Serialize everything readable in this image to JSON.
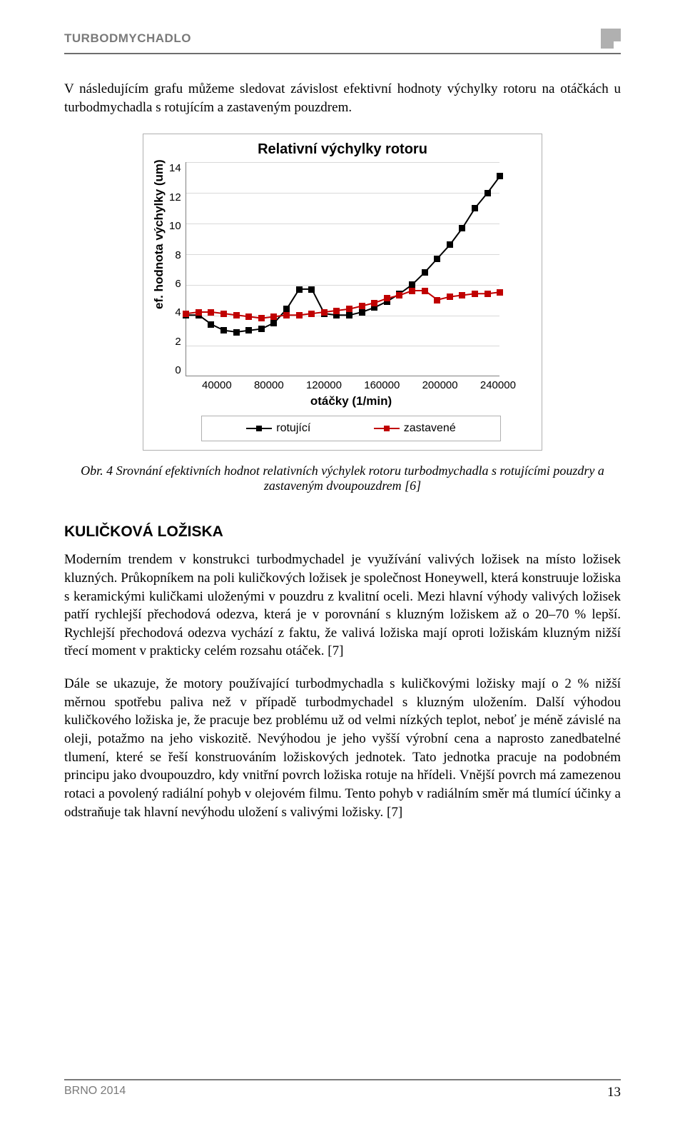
{
  "header": {
    "title": "TURBODMYCHADLO"
  },
  "intro": "V následujícím grafu můžeme sledovat závislost efektivní hodnoty výchylky rotoru na otáčkách u turbodmychadla s rotujícím a zastaveným pouzdrem.",
  "chart": {
    "type": "line",
    "title": "Relativní výchylky rotoru",
    "ylabel": "ef. hodnota výchylky (um)",
    "xlabel": "otáčky (1/min)",
    "xlim": [
      40000,
      240000
    ],
    "ylim": [
      0,
      14
    ],
    "xticks": [
      40000,
      80000,
      120000,
      160000,
      200000,
      240000
    ],
    "yticks": [
      0,
      2,
      4,
      6,
      8,
      10,
      12,
      14
    ],
    "grid_color": "#d9d9d9",
    "border_color": "#808080",
    "background_color": "#ffffff",
    "title_fontsize": 20,
    "label_fontsize": 17,
    "tick_fontsize": 15,
    "line_width": 2,
    "marker_size": 9,
    "marker_style": "square",
    "legend_border_color": "#b0b0b0",
    "series": [
      {
        "name": "rotující",
        "color": "#000000",
        "x": [
          40000,
          48000,
          56000,
          64000,
          72000,
          80000,
          88000,
          96000,
          104000,
          112000,
          120000,
          128000,
          136000,
          144000,
          152000,
          160000,
          168000,
          176000,
          184000,
          192000,
          200000,
          208000,
          216000,
          224000,
          232000,
          240000
        ],
        "y": [
          4.0,
          4.0,
          3.4,
          3.0,
          2.9,
          3.0,
          3.1,
          3.5,
          4.4,
          5.7,
          5.7,
          4.1,
          4.0,
          4.0,
          4.2,
          4.5,
          4.9,
          5.4,
          6.0,
          6.8,
          7.7,
          8.6,
          9.7,
          11.0,
          12.0,
          13.1
        ]
      },
      {
        "name": "zastavené",
        "color": "#c00000",
        "x": [
          40000,
          48000,
          56000,
          64000,
          72000,
          80000,
          88000,
          96000,
          104000,
          112000,
          120000,
          128000,
          136000,
          144000,
          152000,
          160000,
          168000,
          176000,
          184000,
          192000,
          200000,
          208000,
          216000,
          224000,
          232000,
          240000
        ],
        "y": [
          4.1,
          4.2,
          4.2,
          4.1,
          4.0,
          3.9,
          3.8,
          3.9,
          4.0,
          4.0,
          4.1,
          4.2,
          4.3,
          4.4,
          4.6,
          4.8,
          5.1,
          5.3,
          5.6,
          5.6,
          5.0,
          5.2,
          5.3,
          5.4,
          5.4,
          5.5
        ]
      }
    ],
    "caption": "Obr. 4 Srovnání efektivních hodnot relativních výchylek rotoru turbodmychadla s rotujícími pouzdry a zastaveným dvoupouzdrem [6]"
  },
  "section": {
    "heading_first": "K",
    "heading_rest": "ULIČKOVÁ LOŽISKA",
    "para1": "Moderním trendem v konstrukci turbodmychadel je využívání valivých ložisek na místo ložisek kluzných. Průkopníkem na poli kuličkových ložisek je společnost Honeywell, která konstruuje ložiska s keramickými kuličkami uloženými v pouzdru z kvalitní oceli. Mezi hlavní výhody valivých ložisek patří rychlejší přechodová odezva, která je v porovnání s kluzným ložiskem až o 20–70 % lepší. Rychlejší přechodová odezva vychází z faktu, že valivá ložiska mají oproti ložiskám kluzným nižší třecí moment v prakticky celém rozsahu otáček. [7]",
    "para2": "Dále se ukazuje, že motory používající turbodmychadla s kuličkovými ložisky mají o 2 % nižší měrnou spotřebu paliva než v případě turbodmychadel s kluzným uložením. Další výhodou kuličkového ložiska je, že pracuje bez problému už od velmi nízkých teplot, neboť je méně závislé na oleji, potažmo na jeho viskozitě. Nevýhodou je jeho vyšší výrobní cena a naprosto zanedbatelné tlumení, které se řeší konstruováním ložiskových jednotek. Tato jednotka pracuje na podobném principu jako dvoupouzdro, kdy vnitřní povrch ložiska rotuje na hřídeli. Vnější povrch má zamezenou rotaci a povolený radiální pohyb v olejovém filmu. Tento pohyb v radiálním směr má tlumící účinky a odstraňuje tak hlavní nevýhodu uložení s valivými ložisky. [7]"
  },
  "footer": {
    "left": "BRNO 2014",
    "page": "13"
  }
}
